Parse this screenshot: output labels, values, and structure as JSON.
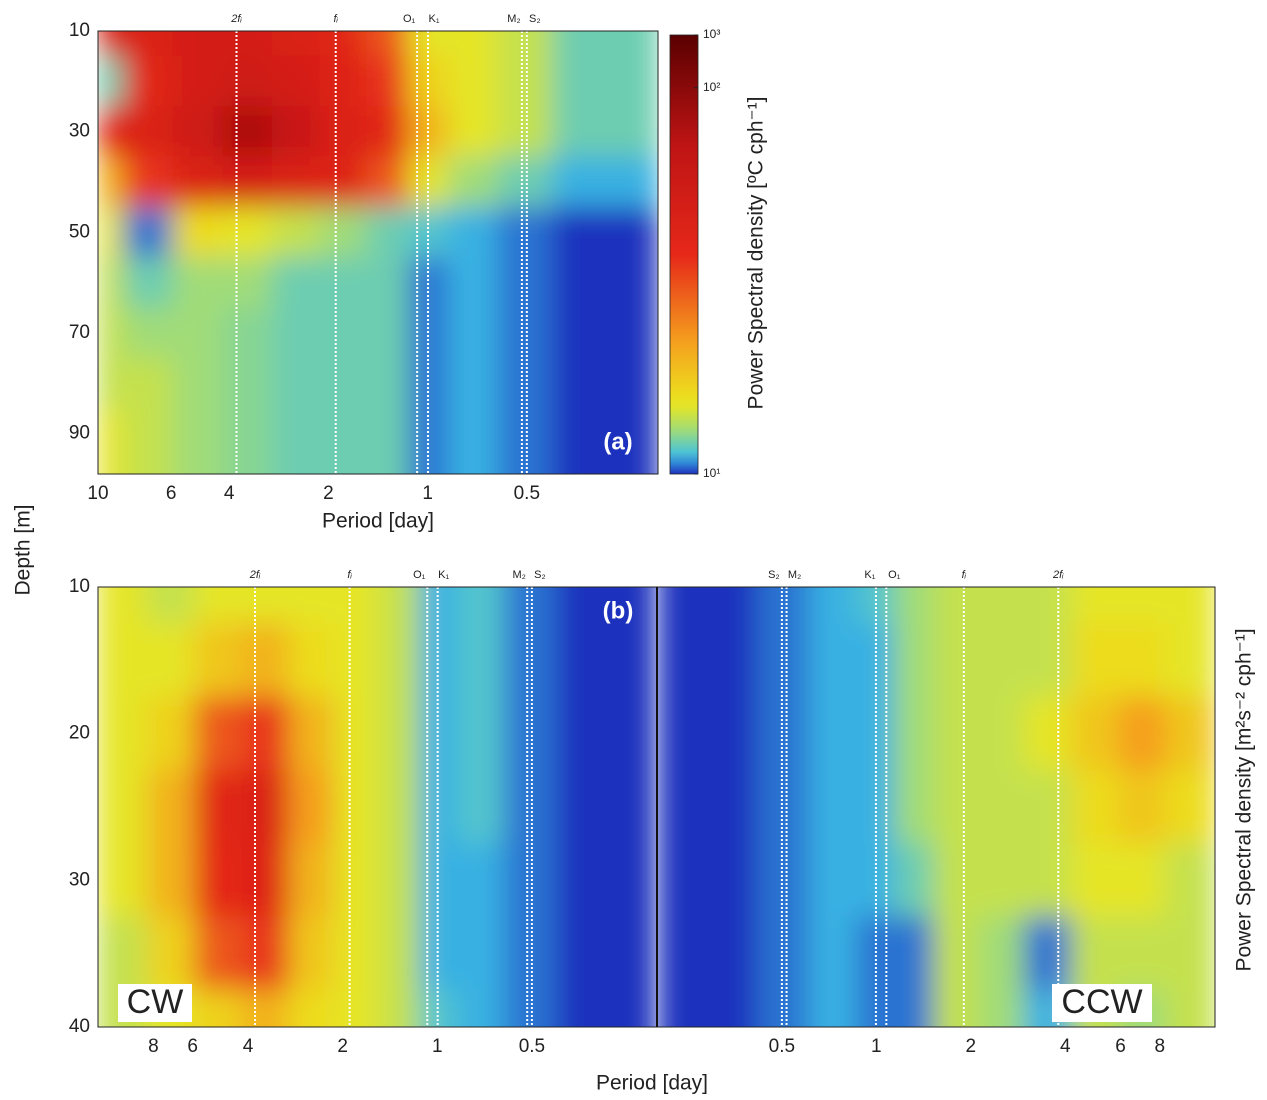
{
  "chart_data": [
    {
      "type": "heatmap",
      "panel_label": "(a)",
      "x_label": "Period [day]",
      "y_label": "Depth [m]",
      "xscale": "log",
      "xlim": [
        10,
        0.2
      ],
      "xticks": [
        10,
        6,
        4,
        2,
        1,
        0.5
      ],
      "ylim": [
        10,
        98
      ],
      "yticks": [
        10,
        30,
        50,
        70,
        90
      ],
      "colorbar": {
        "label": "Power Spectral density [ºC cph⁻¹]",
        "ticks": [
          {
            "value": 10,
            "label": "10¹"
          },
          {
            "value": 100,
            "label": "10²"
          },
          {
            "value": 1000,
            "label": "10³"
          }
        ]
      },
      "markers": [
        {
          "label": "2fᵢ",
          "value": 3.8
        },
        {
          "label": "fᵢ",
          "value": 1.9
        },
        {
          "label": "O₁",
          "value": 1.076
        },
        {
          "label": "K₁",
          "value": 0.997
        },
        {
          "label": "M₂",
          "value": 0.5175
        },
        {
          "label": "S₂",
          "value": 0.5
        }
      ],
      "x": [
        10,
        7,
        5,
        3.5,
        2.5,
        1.8,
        1.3,
        1.0,
        0.75,
        0.5,
        0.35,
        0.25
      ],
      "y": [
        10,
        20,
        30,
        40,
        50,
        60,
        70,
        80,
        90
      ],
      "values": [
        [
          45,
          45,
          50,
          50,
          45,
          40,
          30,
          15,
          15,
          14,
          12,
          12
        ],
        [
          12,
          40,
          50,
          55,
          50,
          42,
          35,
          17,
          15,
          14,
          12,
          12
        ],
        [
          40,
          45,
          55,
          80,
          60,
          45,
          40,
          20,
          15,
          14,
          12,
          12
        ],
        [
          20,
          35,
          45,
          50,
          45,
          42,
          30,
          15,
          13,
          12,
          11,
          11
        ],
        [
          15,
          10.5,
          16,
          15,
          14,
          13,
          12,
          11.5,
          11,
          10.5,
          10,
          10
        ],
        [
          14,
          12,
          13,
          13,
          12,
          12,
          12,
          10.5,
          11,
          10.5,
          10,
          10
        ],
        [
          14,
          13,
          13,
          12.5,
          12,
          12,
          12,
          10.5,
          11,
          10.5,
          10,
          10
        ],
        [
          14,
          14,
          13,
          12.5,
          12,
          12,
          12,
          10.5,
          11,
          10.5,
          10,
          10
        ],
        [
          15,
          14,
          13,
          12.5,
          12,
          12,
          12,
          10.5,
          11,
          10.5,
          10,
          10
        ]
      ]
    },
    {
      "type": "heatmap",
      "panel_label": "(b)",
      "side_label": "CW",
      "x_label": "Period [day]",
      "colorbar": {
        "label": "Power Spectral density [m²s⁻² cph⁻¹]"
      },
      "xscale": "log",
      "xlim": [
        12,
        0.2
      ],
      "xticks": [
        8,
        6,
        4,
        2,
        1,
        0.5
      ],
      "ylim": [
        10,
        40
      ],
      "yticks": [
        10,
        20,
        30,
        40
      ],
      "markers": [
        {
          "label": "2fᵢ",
          "value": 3.8
        },
        {
          "label": "fᵢ",
          "value": 1.9
        },
        {
          "label": "O₁",
          "value": 1.076
        },
        {
          "label": "K₁",
          "value": 0.997
        },
        {
          "label": "M₂",
          "value": 0.5175
        },
        {
          "label": "S₂",
          "value": 0.5
        }
      ],
      "x": [
        10,
        7,
        5,
        3.5,
        2.5,
        1.8,
        1.3,
        1.0,
        0.75,
        0.5,
        0.35,
        0.25
      ],
      "y": [
        10,
        15,
        20,
        25,
        30,
        35,
        40
      ],
      "values": [
        [
          15,
          14,
          15,
          15,
          15,
          15,
          14,
          11,
          11.5,
          10.5,
          10,
          10
        ],
        [
          15,
          15,
          18,
          20,
          16,
          15,
          14,
          11,
          11.5,
          10.5,
          10,
          10
        ],
        [
          15,
          17,
          30,
          35,
          20,
          15,
          14,
          11,
          11.5,
          10.5,
          10,
          10
        ],
        [
          15,
          20,
          40,
          45,
          22,
          15,
          14,
          11,
          11.5,
          10.5,
          10,
          10
        ],
        [
          15,
          20,
          38,
          42,
          20,
          15,
          14,
          11,
          11,
          10.5,
          10,
          10
        ],
        [
          14,
          17,
          30,
          35,
          18,
          15,
          14,
          11,
          11,
          10.5,
          10,
          10
        ],
        [
          14,
          15,
          17,
          20,
          16,
          15,
          14,
          11.5,
          11,
          10.5,
          10,
          10
        ]
      ]
    },
    {
      "type": "heatmap",
      "side_label": "CCW",
      "xscale": "log",
      "xlim": [
        0.2,
        12
      ],
      "xticks": [
        0.5,
        1,
        2,
        4,
        6,
        8
      ],
      "ylim": [
        10,
        40
      ],
      "markers": [
        {
          "label": "M₂",
          "value": 0.5175
        },
        {
          "label": "S₂",
          "value": 0.5
        },
        {
          "label": "O₁",
          "value": 1.076
        },
        {
          "label": "K₁",
          "value": 0.997
        },
        {
          "label": "fᵢ",
          "value": 1.9
        },
        {
          "label": "2fᵢ",
          "value": 3.8
        }
      ],
      "x": [
        0.25,
        0.35,
        0.5,
        0.75,
        1.0,
        1.3,
        1.8,
        2.5,
        3.5,
        5,
        7,
        10
      ],
      "y": [
        10,
        15,
        20,
        25,
        30,
        35,
        40
      ],
      "values": [
        [
          10,
          10,
          10.5,
          11,
          11.5,
          13,
          14,
          14,
          14,
          15,
          15,
          15
        ],
        [
          10,
          10,
          10.5,
          11,
          11,
          13,
          14,
          14,
          14,
          16,
          16,
          15
        ],
        [
          10,
          10,
          10.5,
          11,
          11,
          13,
          14,
          14,
          15,
          18,
          22,
          18
        ],
        [
          10,
          10,
          10.5,
          11,
          11,
          13,
          14,
          14,
          14,
          16,
          18,
          16
        ],
        [
          10,
          10,
          10.5,
          11,
          11,
          12,
          14,
          14,
          14,
          15,
          15,
          14
        ],
        [
          10,
          10,
          10.5,
          11,
          10.5,
          10.5,
          14,
          13,
          10.5,
          14,
          14,
          14
        ],
        [
          10,
          10,
          10.5,
          11,
          10.5,
          10.5,
          14,
          13,
          11,
          14,
          13,
          14
        ]
      ]
    }
  ]
}
